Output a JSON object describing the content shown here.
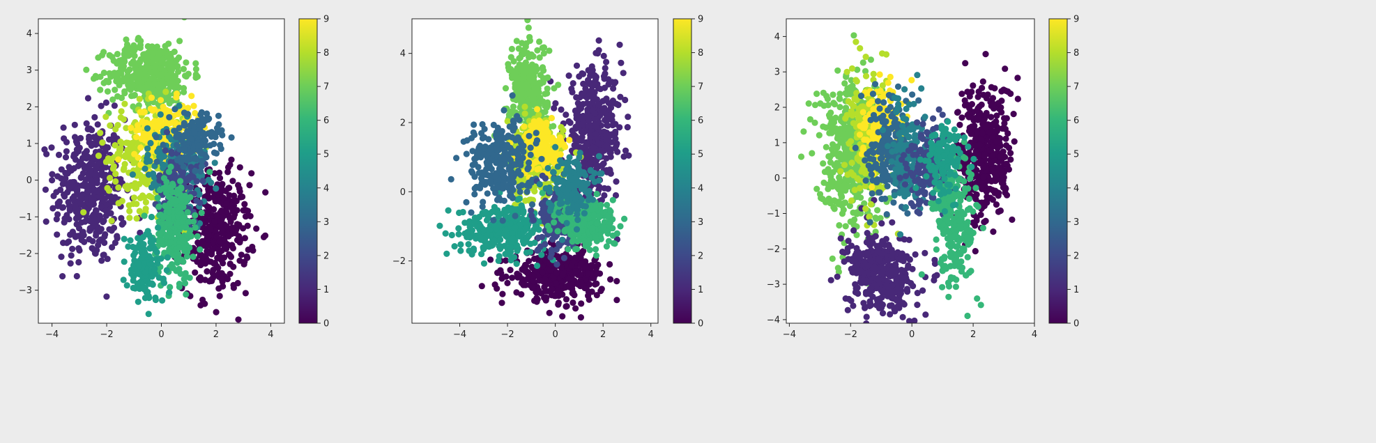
{
  "chart_data": [
    {
      "type": "scatter",
      "title": "",
      "xlabel": "",
      "ylabel": "",
      "xlim": [
        -4.5,
        4.5
      ],
      "ylim": [
        -3.9,
        4.4
      ],
      "xticks": [
        -4,
        -2,
        0,
        2,
        4
      ],
      "yticks": [
        -3,
        -2,
        -1,
        0,
        1,
        2,
        3,
        4
      ],
      "colorbar": {
        "min": 0,
        "max": 9,
        "ticks": [
          0,
          1,
          2,
          3,
          4,
          5,
          6,
          7,
          8,
          9
        ]
      },
      "grid": false,
      "clusters": [
        {
          "label": 1,
          "cx": -2.6,
          "cy": -0.3,
          "sx": 0.65,
          "sy": 1.0,
          "n": 420
        },
        {
          "label": 0,
          "cx": 2.0,
          "cy": -1.4,
          "sx": 0.6,
          "sy": 0.8,
          "n": 380
        },
        {
          "label": 7,
          "cx": -0.4,
          "cy": 2.9,
          "sx": 0.75,
          "sy": 0.45,
          "n": 420
        },
        {
          "label": 8,
          "cx": -0.6,
          "cy": 0.6,
          "sx": 0.7,
          "sy": 0.7,
          "n": 260
        },
        {
          "label": 9,
          "cx": 0.2,
          "cy": 1.3,
          "sx": 0.6,
          "sy": 0.4,
          "n": 220
        },
        {
          "label": 4,
          "cx": 0.6,
          "cy": 0.3,
          "sx": 0.55,
          "sy": 0.6,
          "n": 200
        },
        {
          "label": 2,
          "cx": 0.6,
          "cy": -0.2,
          "sx": 0.35,
          "sy": 0.55,
          "n": 160
        },
        {
          "label": 6,
          "cx": 0.5,
          "cy": -1.3,
          "sx": 0.35,
          "sy": 0.7,
          "n": 260
        },
        {
          "label": 5,
          "cx": -0.6,
          "cy": -2.4,
          "sx": 0.35,
          "sy": 0.5,
          "n": 140
        },
        {
          "label": 3,
          "cx": 1.2,
          "cy": 1.1,
          "sx": 0.45,
          "sy": 0.35,
          "n": 140
        }
      ]
    },
    {
      "type": "scatter",
      "title": "",
      "xlabel": "",
      "ylabel": "",
      "xlim": [
        -6.0,
        4.3
      ],
      "ylim": [
        -3.8,
        5.0
      ],
      "xticks": [
        -4,
        -2,
        0,
        2,
        4
      ],
      "yticks": [
        -2,
        0,
        2,
        4
      ],
      "colorbar": {
        "min": 0,
        "max": 9,
        "ticks": [
          0,
          1,
          2,
          3,
          4,
          5,
          6,
          7,
          8,
          9
        ]
      },
      "grid": false,
      "clusters": [
        {
          "label": 1,
          "cx": 1.6,
          "cy": 1.7,
          "sx": 0.6,
          "sy": 0.9,
          "n": 420
        },
        {
          "label": 0,
          "cx": 0.1,
          "cy": -2.4,
          "sx": 0.95,
          "sy": 0.35,
          "n": 380
        },
        {
          "label": 7,
          "cx": -1.1,
          "cy": 2.8,
          "sx": 0.4,
          "sy": 0.8,
          "n": 320
        },
        {
          "label": 8,
          "cx": -0.9,
          "cy": 0.8,
          "sx": 0.6,
          "sy": 0.6,
          "n": 240
        },
        {
          "label": 9,
          "cx": -0.5,
          "cy": 1.3,
          "sx": 0.45,
          "sy": 0.4,
          "n": 160
        },
        {
          "label": 5,
          "cx": -2.2,
          "cy": -1.1,
          "sx": 0.9,
          "sy": 0.35,
          "n": 300
        },
        {
          "label": 3,
          "cx": -2.3,
          "cy": 0.8,
          "sx": 0.7,
          "sy": 0.6,
          "n": 260
        },
        {
          "label": 2,
          "cx": 0.1,
          "cy": -0.7,
          "sx": 0.35,
          "sy": 0.5,
          "n": 200
        },
        {
          "label": 6,
          "cx": 1.4,
          "cy": -0.9,
          "sx": 0.6,
          "sy": 0.4,
          "n": 240
        },
        {
          "label": 4,
          "cx": 0.6,
          "cy": 0.2,
          "sx": 0.45,
          "sy": 0.45,
          "n": 140
        }
      ]
    },
    {
      "type": "scatter",
      "title": "",
      "xlabel": "",
      "ylabel": "",
      "xlim": [
        -4.1,
        4.0
      ],
      "ylim": [
        -4.1,
        4.5
      ],
      "xticks": [
        -4,
        -2,
        0,
        2,
        4
      ],
      "yticks": [
        -4,
        -3,
        -2,
        -1,
        0,
        1,
        2,
        3,
        4
      ],
      "colorbar": {
        "min": 0,
        "max": 9,
        "ticks": [
          0,
          1,
          2,
          3,
          4,
          5,
          6,
          7,
          8,
          9
        ]
      },
      "grid": false,
      "clusters": [
        {
          "label": 7,
          "cx": -2.0,
          "cy": 0.8,
          "sx": 0.55,
          "sy": 1.1,
          "n": 440
        },
        {
          "label": 0,
          "cx": 2.4,
          "cy": 0.7,
          "sx": 0.45,
          "sy": 1.0,
          "n": 380
        },
        {
          "label": 1,
          "cx": -1.0,
          "cy": -2.7,
          "sx": 0.55,
          "sy": 0.55,
          "n": 380
        },
        {
          "label": 8,
          "cx": -1.4,
          "cy": 1.0,
          "sx": 0.35,
          "sy": 0.9,
          "n": 200
        },
        {
          "label": 9,
          "cx": -1.0,
          "cy": 1.6,
          "sx": 0.35,
          "sy": 0.6,
          "n": 140
        },
        {
          "label": 3,
          "cx": -0.7,
          "cy": 0.8,
          "sx": 0.35,
          "sy": 0.8,
          "n": 200
        },
        {
          "label": 4,
          "cx": -0.1,
          "cy": 0.7,
          "sx": 0.3,
          "sy": 0.7,
          "n": 160
        },
        {
          "label": 2,
          "cx": 0.6,
          "cy": 0.3,
          "sx": 0.35,
          "sy": 0.6,
          "n": 180
        },
        {
          "label": 6,
          "cx": 1.4,
          "cy": -1.2,
          "sx": 0.35,
          "sy": 0.95,
          "n": 240
        },
        {
          "label": 5,
          "cx": 1.1,
          "cy": 0.5,
          "sx": 0.3,
          "sy": 0.5,
          "n": 120
        }
      ]
    }
  ]
}
